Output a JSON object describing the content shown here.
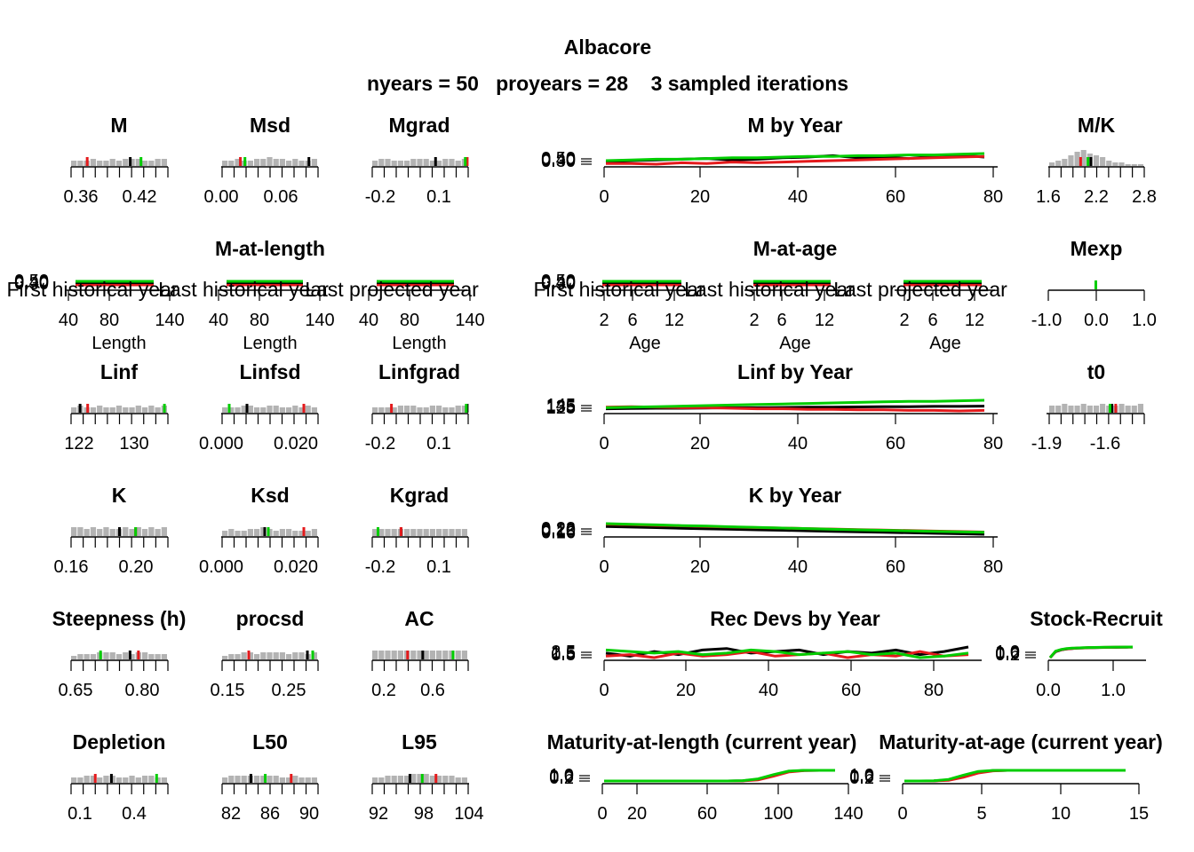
{
  "figure": {
    "title": "Albacore",
    "subtitle": "nyears = 50   proyears = 28    3 sampled iterations"
  },
  "colors": {
    "iter1": "#000000",
    "iter2": "#e41a1c",
    "iter3": "#00cd00",
    "hist": "#b3b3b3"
  },
  "chart_data": [
    {
      "id": "M",
      "type": "histogram",
      "title": "M",
      "ticks": [
        "0.36",
        "0.42"
      ],
      "xlim": [
        0.35,
        0.44
      ],
      "samples": [
        0.405,
        0.365,
        0.415
      ],
      "hist": [
        3,
        3,
        3,
        4,
        3,
        3,
        4,
        3,
        4,
        4,
        4,
        3,
        3,
        4,
        4
      ]
    },
    {
      "id": "Msd",
      "type": "histogram",
      "title": "Msd",
      "ticks": [
        "0.00",
        "0.06"
      ],
      "xlim": [
        -0.005,
        0.1
      ],
      "samples": [
        0.09,
        0.015,
        0.02
      ],
      "hist": [
        3,
        3,
        4,
        3,
        3,
        4,
        4,
        5,
        4,
        4,
        3,
        4,
        3,
        3,
        4
      ]
    },
    {
      "id": "Mgrad",
      "type": "histogram",
      "title": "Mgrad",
      "ticks": [
        "-0.2",
        "0.1"
      ],
      "xlim": [
        -0.25,
        0.25
      ],
      "samples": [
        0.08,
        0.245,
        0.235
      ],
      "hist": [
        3,
        4,
        4,
        3,
        3,
        3,
        4,
        4,
        4,
        3,
        3,
        4,
        4,
        3,
        4
      ]
    },
    {
      "id": "MbyYear",
      "type": "line",
      "title": "M by Year",
      "ticks": [
        "0",
        "20",
        "40",
        "60",
        "80"
      ],
      "xlim": [
        0,
        80
      ],
      "ylabels": [
        "0.50",
        "0.40",
        "0.30"
      ],
      "series": [
        {
          "values": [
            0.4,
            0.42,
            0.43,
            0.44,
            0.45,
            0.43,
            0.44,
            0.46,
            0.47,
            0.49,
            0.46,
            0.47,
            0.45,
            0.48,
            0.5,
            0.47
          ]
        },
        {
          "values": [
            0.38,
            0.38,
            0.37,
            0.39,
            0.38,
            0.4,
            0.39,
            0.4,
            0.41,
            0.42,
            0.43,
            0.44,
            0.45,
            0.46,
            0.47,
            0.48
          ]
        },
        {
          "values": [
            0.42,
            0.43,
            0.44,
            0.44,
            0.45,
            0.46,
            0.46,
            0.47,
            0.48,
            0.48,
            0.49,
            0.49,
            0.5,
            0.5,
            0.51,
            0.52
          ]
        }
      ]
    },
    {
      "id": "MK",
      "type": "histogram",
      "title": "M/K",
      "ticks": [
        "1.6",
        "2.2",
        "2.8"
      ],
      "xlim": [
        1.55,
        2.85
      ],
      "samples": [
        2.12,
        1.98,
        2.08
      ],
      "hist": [
        2,
        3,
        4,
        6,
        8,
        9,
        7,
        6,
        5,
        3,
        2,
        2,
        1,
        1,
        1
      ]
    },
    {
      "id": "MatLength",
      "type": "line-multi",
      "title": "M-at-length",
      "xlabel": "Length",
      "ticks": [
        "40",
        "80",
        "140"
      ],
      "ylabels": [
        "0.50",
        "0.40",
        "0.30"
      ],
      "labels": [
        "First historical year",
        "Last historical year",
        "Last projected year"
      ]
    },
    {
      "id": "MatAge",
      "type": "line-multi",
      "title": "M-at-age",
      "xlabel": "Age",
      "ticks": [
        "2",
        "6",
        "12"
      ],
      "ylabels": [
        "0.50",
        "0.40",
        "0.30"
      ],
      "labels": [
        "First historical year",
        "Last historical year",
        "Last projected year"
      ]
    },
    {
      "id": "Mexp",
      "type": "histogram",
      "title": "Mexp",
      "ticks": [
        "-1.0",
        "0.0",
        "1.0"
      ],
      "xlim": [
        -1.1,
        1.1
      ],
      "samples": [
        0.0,
        0.0,
        0.0
      ],
      "hist": []
    },
    {
      "id": "Linf",
      "type": "histogram",
      "title": "Linf",
      "ticks": [
        "122",
        "130"
      ],
      "xlim": [
        121,
        135
      ],
      "samples": [
        122.3,
        123.4,
        134.5
      ],
      "hist": [
        3,
        4,
        3,
        3,
        4,
        3,
        3,
        4,
        3,
        3,
        4,
        3,
        4,
        3,
        4
      ]
    },
    {
      "id": "Linfsd",
      "type": "histogram",
      "title": "Linfsd",
      "ticks": [
        "0.000",
        "0.020"
      ],
      "xlim": [
        -0.001,
        0.026
      ],
      "samples": [
        0.006,
        0.022,
        0.001
      ],
      "hist": [
        3,
        3,
        3,
        4,
        4,
        3,
        3,
        4,
        4,
        3,
        3,
        4,
        3,
        4,
        3
      ]
    },
    {
      "id": "Linfgrad",
      "type": "histogram",
      "title": "Linfgrad",
      "ticks": [
        "-0.2",
        "0.1"
      ],
      "xlim": [
        -0.25,
        0.25
      ],
      "samples": [
        0.245,
        -0.15,
        0.24
      ],
      "hist": [
        3,
        3,
        3,
        3,
        4,
        4,
        4,
        3,
        3,
        4,
        4,
        3,
        3,
        4,
        4
      ]
    },
    {
      "id": "LinfbyYear",
      "type": "line",
      "title": "Linf by Year",
      "ticks": [
        "0",
        "20",
        "40",
        "60",
        "80"
      ],
      "xlim": [
        0,
        80
      ],
      "ylabels": [
        "145",
        "135",
        "125"
      ],
      "series": [
        {
          "values": [
            124,
            124.5,
            125,
            125,
            125.5,
            126,
            126,
            126.5,
            127,
            127,
            127.5,
            128,
            128,
            128.5,
            128.5,
            129
          ]
        },
        {
          "values": [
            127,
            128,
            127,
            126,
            126,
            125,
            124,
            124,
            123,
            123,
            122,
            122,
            121,
            121,
            120,
            121
          ]
        },
        {
          "values": [
            126,
            127,
            128,
            129,
            130,
            131,
            132,
            133,
            134,
            135,
            136,
            137,
            138,
            138,
            139,
            140
          ]
        }
      ]
    },
    {
      "id": "t0",
      "type": "histogram",
      "title": "t0",
      "ticks": [
        "-1.9",
        "-1.6"
      ],
      "xlim": [
        -1.95,
        -1.45
      ],
      "samples": [
        -1.62,
        -1.6,
        -1.63
      ],
      "hist": [
        4,
        4,
        5,
        4,
        4,
        5,
        4,
        4,
        5,
        4,
        4,
        5,
        4,
        4,
        5
      ]
    },
    {
      "id": "K",
      "type": "histogram",
      "title": "K",
      "ticks": [
        "0.16",
        "0.20"
      ],
      "xlim": [
        0.16,
        0.22
      ],
      "samples": [
        0.19,
        0.2,
        0.2
      ],
      "hist": [
        5,
        5,
        4,
        5,
        4,
        5,
        4,
        4,
        5,
        4,
        5,
        4,
        5,
        4,
        5
      ]
    },
    {
      "id": "Ksd",
      "type": "histogram",
      "title": "Ksd",
      "ticks": [
        "0.000",
        "0.020"
      ],
      "xlim": [
        -0.001,
        0.026
      ],
      "samples": [
        0.011,
        0.022,
        0.012
      ],
      "hist": [
        3,
        4,
        3,
        3,
        4,
        4,
        5,
        4,
        3,
        4,
        4,
        3,
        3,
        3,
        4
      ]
    },
    {
      "id": "Kgrad",
      "type": "histogram",
      "title": "Kgrad",
      "ticks": [
        "-0.2",
        "0.1"
      ],
      "xlim": [
        -0.25,
        0.25
      ],
      "samples": [
        -0.1,
        -0.1,
        -0.22
      ],
      "hist": [
        4,
        4,
        4,
        4,
        4,
        4,
        4,
        4,
        4,
        4,
        4,
        4,
        4,
        4,
        4
      ]
    },
    {
      "id": "KbyYear",
      "type": "line",
      "title": "K by Year",
      "ticks": [
        "0",
        "20",
        "40",
        "60",
        "80"
      ],
      "xlim": [
        0,
        80
      ],
      "ylabels": [
        "0.22",
        "0.20",
        "0.18",
        "0.16"
      ],
      "series": [
        {
          "values": [
            0.2,
            0.198,
            0.196,
            0.193,
            0.191,
            0.189,
            0.187,
            0.185,
            0.183,
            0.181,
            0.179,
            0.177,
            0.175,
            0.173,
            0.171,
            0.169
          ]
        },
        {
          "values": [
            0.21,
            0.208,
            0.205,
            0.203,
            0.2,
            0.198,
            0.196,
            0.194,
            0.192,
            0.19,
            0.188,
            0.186,
            0.184,
            0.182,
            0.18,
            0.178
          ]
        },
        {
          "values": [
            0.212,
            0.209,
            0.207,
            0.204,
            0.202,
            0.199,
            0.197,
            0.194,
            0.192,
            0.189,
            0.187,
            0.185,
            0.183,
            0.181,
            0.179,
            0.177
          ]
        }
      ]
    },
    {
      "id": "Steepness",
      "type": "histogram",
      "title": "Steepness (h)",
      "ticks": [
        "0.65",
        "0.80"
      ],
      "xlim": [
        0.63,
        0.86
      ],
      "samples": [
        0.77,
        0.79,
        0.7
      ],
      "hist": [
        2,
        3,
        3,
        3,
        4,
        4,
        4,
        3,
        4,
        3,
        4,
        4,
        3,
        3,
        3
      ]
    },
    {
      "id": "procsd",
      "type": "histogram",
      "title": "procsd",
      "ticks": [
        "0.15",
        "0.25"
      ],
      "xlim": [
        0.13,
        0.31
      ],
      "samples": [
        0.29,
        0.18,
        0.3
      ],
      "hist": [
        2,
        3,
        3,
        4,
        4,
        3,
        4,
        4,
        4,
        4,
        3,
        4,
        4,
        3,
        4
      ]
    },
    {
      "id": "AC",
      "type": "histogram",
      "title": "AC",
      "ticks": [
        "0.2",
        "0.6"
      ],
      "xlim": [
        0.0,
        0.95
      ],
      "samples": [
        0.5,
        0.35,
        0.8
      ],
      "hist": [
        5,
        5,
        5,
        5,
        5,
        5,
        5,
        5,
        5,
        5,
        5,
        5,
        5,
        5,
        5
      ]
    },
    {
      "id": "RecDevs",
      "type": "line",
      "title": "Rec Devs by Year",
      "ticks": [
        "0",
        "20",
        "40",
        "60",
        "80"
      ],
      "xlim": [
        0,
        90
      ],
      "ylabels": [
        "2.5",
        "1.5",
        "0.5"
      ],
      "series": [
        {
          "values": [
            1.1,
            0.9,
            1.2,
            1.0,
            1.3,
            1.4,
            1.1,
            1.2,
            1.3,
            1.0,
            1.2,
            1.1,
            1.3,
            1.0,
            1.2,
            1.5
          ]
        },
        {
          "values": [
            0.9,
            1.0,
            0.8,
            1.1,
            0.9,
            1.0,
            1.2,
            0.9,
            1.0,
            1.1,
            0.8,
            1.0,
            0.9,
            1.2,
            0.9,
            1.0
          ]
        },
        {
          "values": [
            1.3,
            1.2,
            1.1,
            1.2,
            1.0,
            1.1,
            1.3,
            1.2,
            1.0,
            1.1,
            1.2,
            1.0,
            1.1,
            0.8,
            0.9,
            1.1
          ]
        }
      ]
    },
    {
      "id": "StockRecruit",
      "type": "line",
      "title": "Stock-Recruit",
      "ticks": [
        "0.0",
        "1.0"
      ],
      "xlim": [
        0,
        1.5
      ],
      "ylabels": [
        "1.0",
        "0.6",
        "0.2"
      ],
      "series": [
        {
          "values": [
            0.0,
            0.55,
            0.72,
            0.8,
            0.85,
            0.88,
            0.9,
            0.92,
            0.93,
            0.94,
            0.95,
            0.96,
            0.96,
            0.97,
            0.97,
            0.98
          ]
        },
        {
          "values": [
            0.0,
            0.58,
            0.74,
            0.82,
            0.86,
            0.89,
            0.91,
            0.93,
            0.94,
            0.95,
            0.96,
            0.96,
            0.97,
            0.97,
            0.98,
            0.98
          ]
        },
        {
          "values": [
            0.0,
            0.6,
            0.76,
            0.84,
            0.88,
            0.9,
            0.92,
            0.94,
            0.95,
            0.96,
            0.97,
            0.97,
            0.98,
            0.98,
            0.99,
            0.99
          ]
        }
      ]
    },
    {
      "id": "Depletion",
      "type": "histogram",
      "title": "Depletion",
      "ticks": [
        "0.1",
        "0.4"
      ],
      "xlim": [
        0.05,
        0.65
      ],
      "samples": [
        0.3,
        0.2,
        0.58
      ],
      "hist": [
        3,
        3,
        4,
        4,
        3,
        4,
        4,
        3,
        3,
        4,
        3,
        4,
        4,
        3,
        3
      ]
    },
    {
      "id": "L50",
      "type": "histogram",
      "title": "L50",
      "ticks": [
        "82",
        "86",
        "90"
      ],
      "xlim": [
        81,
        91
      ],
      "samples": [
        84,
        88.2,
        85.5
      ],
      "hist": [
        3,
        4,
        4,
        4,
        4,
        4,
        4,
        4,
        4,
        3,
        3,
        4,
        3,
        3,
        3
      ]
    },
    {
      "id": "L95",
      "type": "histogram",
      "title": "L95",
      "ticks": [
        "92",
        "98",
        "104"
      ],
      "xlim": [
        91,
        105
      ],
      "samples": [
        96.5,
        100.3,
        98.3
      ],
      "hist": [
        3,
        3,
        4,
        4,
        4,
        4,
        5,
        5,
        5,
        4,
        4,
        4,
        4,
        3,
        3
      ]
    },
    {
      "id": "MatLength",
      "type": "line",
      "title": "Maturity-at-length (current year)",
      "ticks": [
        "0",
        "20",
        "60",
        "100",
        "140"
      ],
      "xlim": [
        -5,
        140
      ],
      "ylabels": [
        "1.0",
        "0.6",
        "0.2"
      ],
      "series": [
        {
          "values": [
            0,
            0,
            0,
            0,
            0,
            0,
            0,
            0,
            0,
            0.02,
            0.15,
            0.55,
            0.9,
            0.99,
            1,
            1
          ]
        },
        {
          "values": [
            0,
            0,
            0,
            0,
            0,
            0,
            0,
            0,
            0,
            0.01,
            0.1,
            0.45,
            0.85,
            0.98,
            1,
            1
          ]
        },
        {
          "values": [
            0,
            0,
            0,
            0,
            0,
            0,
            0,
            0,
            0,
            0.03,
            0.2,
            0.6,
            0.93,
            1,
            1,
            1
          ]
        }
      ]
    },
    {
      "id": "MatAge",
      "type": "line",
      "title": "Maturity-at-age (current year)",
      "ticks": [
        "0",
        "5",
        "10",
        "15"
      ],
      "xlim": [
        0,
        15
      ],
      "ylabels": [
        "1.0",
        "0.6",
        "0.2"
      ],
      "series": [
        {
          "values": [
            0,
            0,
            0.01,
            0.1,
            0.45,
            0.85,
            0.98,
            1,
            1,
            1,
            1,
            1,
            1,
            1,
            1,
            1
          ]
        },
        {
          "values": [
            0,
            0,
            0.01,
            0.06,
            0.35,
            0.75,
            0.95,
            1,
            1,
            1,
            1,
            1,
            1,
            1,
            1,
            1
          ]
        },
        {
          "values": [
            0,
            0,
            0.02,
            0.15,
            0.55,
            0.9,
            0.99,
            1,
            1,
            1,
            1,
            1,
            1,
            1,
            1,
            1
          ]
        }
      ]
    }
  ]
}
